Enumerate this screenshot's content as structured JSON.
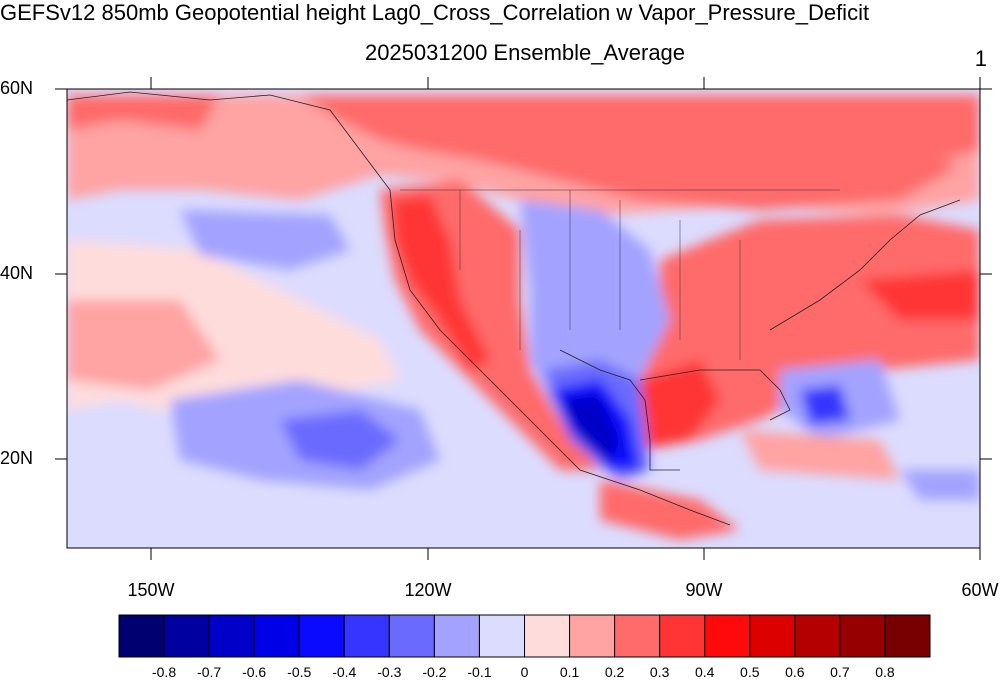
{
  "title": "GEFSv12 850mb Geopotential height Lag0_Cross_Correlation w Vapor_Pressure_Deficit",
  "subtitle": "2025031200 Ensemble_Average",
  "corner_label": "1",
  "map": {
    "lat_labels": [
      "60N",
      "40N",
      "20N"
    ],
    "lon_labels": [
      "150W",
      "120W",
      "90W",
      "60W"
    ]
  },
  "colorbar": {
    "tick_labels": [
      "-0.8",
      "-0.7",
      "-0.6",
      "-0.5",
      "-0.4",
      "-0.3",
      "-0.2",
      "-0.1",
      "0",
      "0.1",
      "0.2",
      "0.3",
      "0.4",
      "0.5",
      "0.6",
      "0.7",
      "0.8"
    ],
    "colors": [
      "#000070",
      "#0000a0",
      "#0000c8",
      "#0000e6",
      "#0a0aff",
      "#3535ff",
      "#6a6aff",
      "#a3a3ff",
      "#dcdcff",
      "#ffdcdc",
      "#ffa3a3",
      "#ff6a6a",
      "#ff3535",
      "#ff0a0a",
      "#dc0000",
      "#b40000",
      "#960000",
      "#780000"
    ]
  }
}
